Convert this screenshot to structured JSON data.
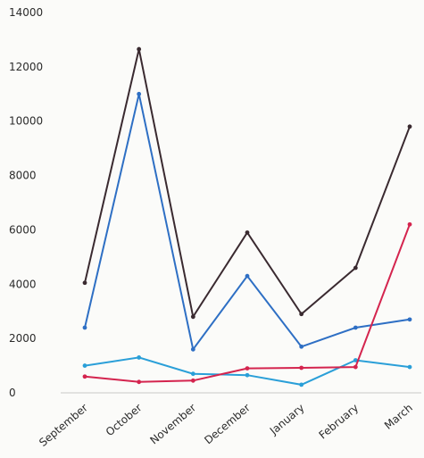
{
  "chart_data": {
    "type": "line",
    "title": "",
    "xlabel": "",
    "ylabel": "",
    "categories": [
      "September",
      "October",
      "November",
      "December",
      "January",
      "February",
      "March"
    ],
    "ylim": [
      0,
      14000
    ],
    "yticks": [
      0,
      2000,
      4000,
      6000,
      8000,
      10000,
      12000,
      14000
    ],
    "grid": false,
    "legend": "none",
    "series": [
      {
        "color": "#3a2a30",
        "values": [
          4050,
          12650,
          2800,
          5900,
          2900,
          4600,
          9800
        ]
      },
      {
        "color": "#2e6fc4",
        "values": [
          2400,
          11000,
          1600,
          4300,
          1700,
          2400,
          2700
        ]
      },
      {
        "color": "#2a9fd8",
        "values": [
          1000,
          1300,
          700,
          650,
          300,
          1200,
          950
        ]
      },
      {
        "color": "#d4244e",
        "values": [
          600,
          400,
          450,
          900,
          920,
          950,
          6200
        ]
      }
    ]
  }
}
